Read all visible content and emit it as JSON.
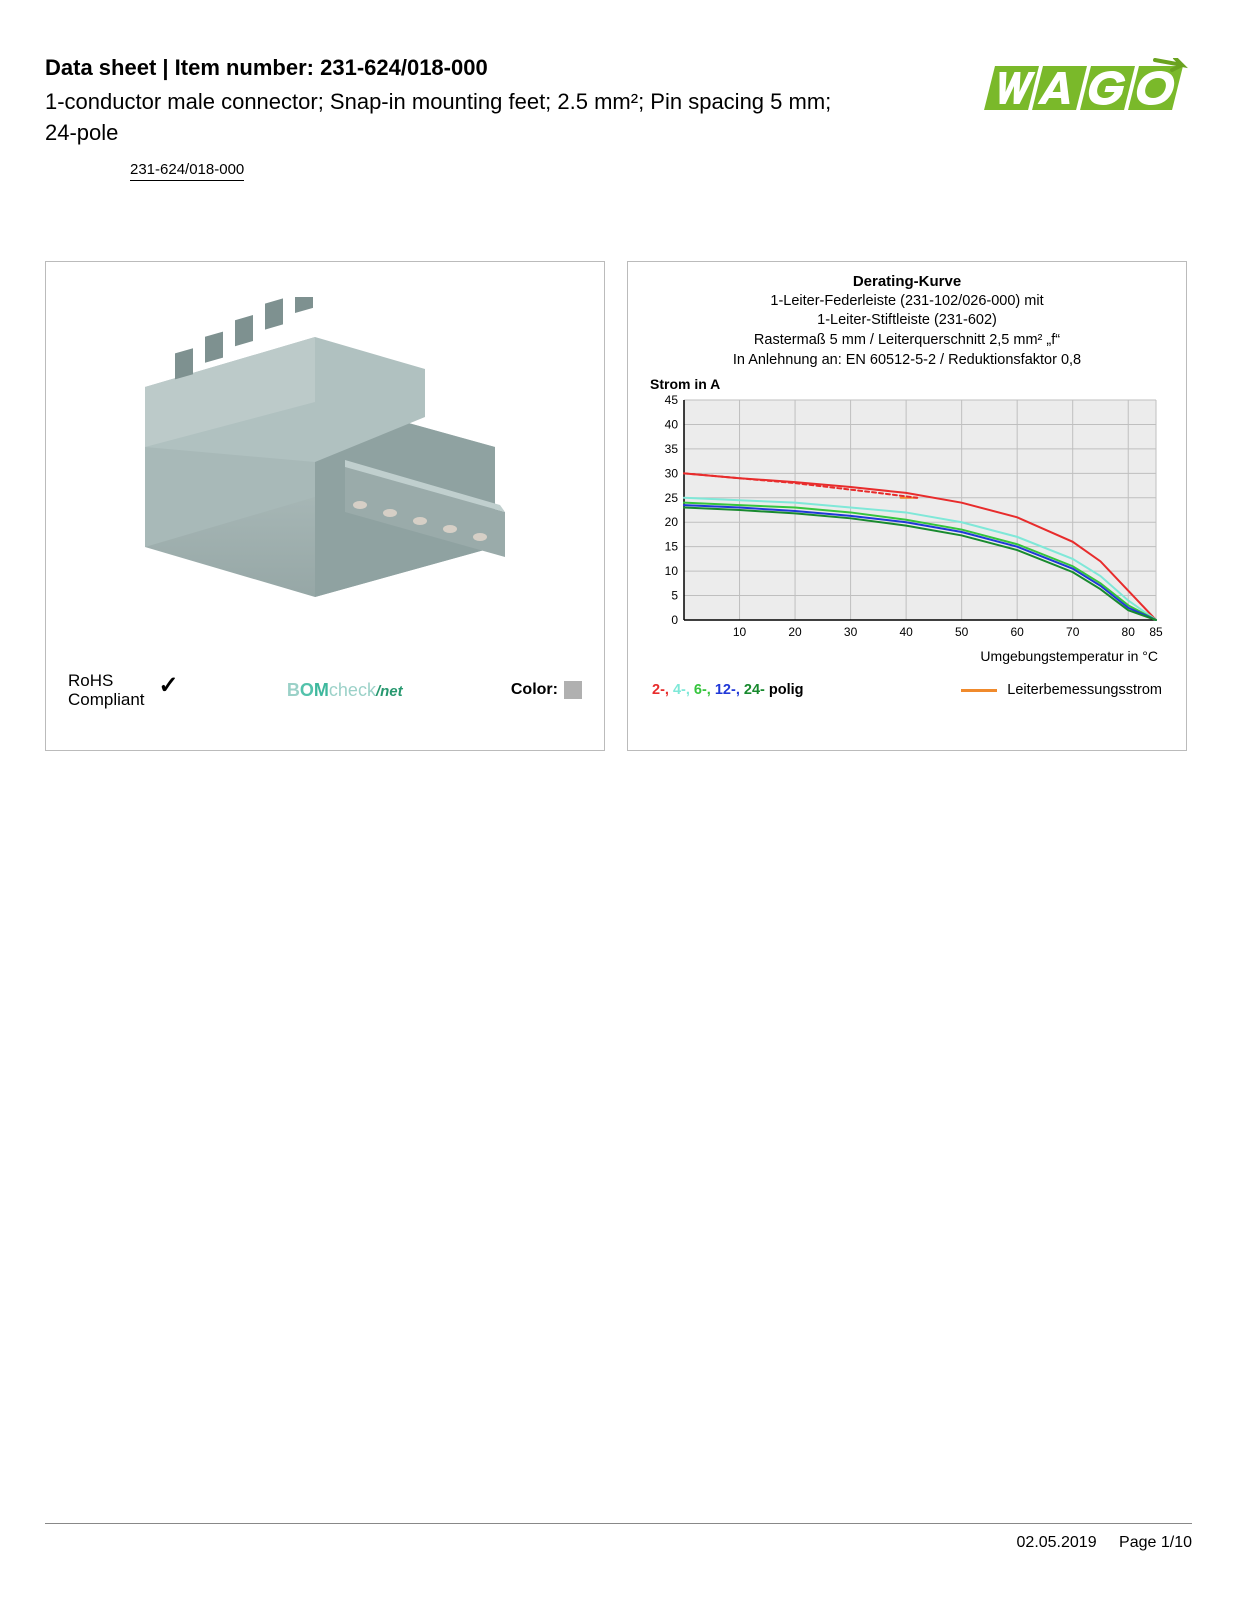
{
  "header": {
    "title": "Data sheet  |  Item number: 231-624/018-000",
    "description": "1-conductor male connector; Snap-in mounting feet; 2.5 mm²; Pin spacing 5 mm; 24-pole",
    "item_link": "231-624/018-000"
  },
  "logo": {
    "brand": "WAGO",
    "primary_color": "#7ab92a",
    "accent_color": "#6aa21f"
  },
  "product_panel": {
    "rohs_line1": "RoHS",
    "rohs_line2": "Compliant",
    "checkmark": "✓",
    "bomcheck_text": "BOMcheck",
    "bomcheck_suffix": "/net",
    "color_label": "Color:",
    "color_swatch": "#b0b0b0",
    "connector_color": "#a8b9b8",
    "connector_shadow": "#8fa2a1",
    "pin_color": "#d6cfc6"
  },
  "chart": {
    "title": "Derating-Kurve",
    "sub1": "1-Leiter-Federleiste (231-102/026-000) mit",
    "sub2": "1-Leiter-Stiftleiste (231-602)",
    "sub3": "Rastermaß 5 mm / Leiterquerschnitt 2,5 mm² „f“",
    "sub4": "In Anlehnung an: EN 60512-5-2 / Reduktionsfaktor 0,8",
    "y_axis_label": "Strom in A",
    "x_axis_label": "Umgebungstemperatur in °C",
    "y_ticks": [
      0,
      5,
      10,
      15,
      20,
      25,
      30,
      35,
      40,
      45
    ],
    "x_ticks": [
      10,
      20,
      30,
      40,
      50,
      60,
      70,
      80,
      85
    ],
    "xlim": [
      0,
      85
    ],
    "ylim": [
      0,
      45
    ],
    "plot_bg": "#ececec",
    "grid_color": "#bfbfbf",
    "axis_color": "#000000",
    "tick_fontsize": 12,
    "series": [
      {
        "name": "2-polig",
        "color": "#e82c2c",
        "dash": "none",
        "points": [
          [
            0,
            30
          ],
          [
            10,
            29
          ],
          [
            20,
            28.2
          ],
          [
            30,
            27.2
          ],
          [
            40,
            26
          ],
          [
            50,
            24
          ],
          [
            60,
            21
          ],
          [
            70,
            16
          ],
          [
            75,
            12
          ],
          [
            80,
            6
          ],
          [
            85,
            0
          ]
        ]
      },
      {
        "name": "4-polig",
        "color": "#7fe8d8",
        "dash": "none",
        "points": [
          [
            0,
            25
          ],
          [
            10,
            24.5
          ],
          [
            20,
            24
          ],
          [
            30,
            23
          ],
          [
            40,
            22
          ],
          [
            50,
            20
          ],
          [
            60,
            17
          ],
          [
            70,
            12.5
          ],
          [
            75,
            9
          ],
          [
            80,
            4
          ],
          [
            85,
            0
          ]
        ]
      },
      {
        "name": "6-polig",
        "color": "#35c43c",
        "dash": "none",
        "points": [
          [
            0,
            24
          ],
          [
            10,
            23.5
          ],
          [
            20,
            23
          ],
          [
            30,
            22
          ],
          [
            40,
            20.5
          ],
          [
            50,
            18.5
          ],
          [
            60,
            15.5
          ],
          [
            70,
            11
          ],
          [
            75,
            7.5
          ],
          [
            80,
            3
          ],
          [
            85,
            0
          ]
        ]
      },
      {
        "name": "12-polig",
        "color": "#2038d8",
        "dash": "none",
        "points": [
          [
            0,
            23.5
          ],
          [
            10,
            23
          ],
          [
            20,
            22.3
          ],
          [
            30,
            21.3
          ],
          [
            40,
            20
          ],
          [
            50,
            18
          ],
          [
            60,
            15
          ],
          [
            70,
            10.5
          ],
          [
            75,
            7
          ],
          [
            80,
            2.5
          ],
          [
            85,
            0
          ]
        ]
      },
      {
        "name": "24-polig",
        "color": "#188a2e",
        "dash": "none",
        "points": [
          [
            0,
            23
          ],
          [
            10,
            22.5
          ],
          [
            20,
            21.8
          ],
          [
            30,
            20.8
          ],
          [
            40,
            19.3
          ],
          [
            50,
            17.3
          ],
          [
            60,
            14.3
          ],
          [
            70,
            9.8
          ],
          [
            75,
            6.3
          ],
          [
            80,
            2
          ],
          [
            85,
            0
          ]
        ]
      },
      {
        "name": "Leiterbemessungsstrom",
        "color": "#f08a2c",
        "dash": "none",
        "points": [
          [
            39,
            25
          ],
          [
            42,
            25
          ]
        ]
      },
      {
        "name": "derating-dash",
        "color": "#e82c2c",
        "dash": "4 3",
        "points": [
          [
            0,
            30
          ],
          [
            20,
            28
          ],
          [
            35,
            26
          ],
          [
            42,
            25
          ]
        ]
      }
    ],
    "legend_polig": [
      {
        "text": "2-",
        "color": "#e82c2c"
      },
      {
        "text": "4-",
        "color": "#7fe8d8"
      },
      {
        "text": "6-",
        "color": "#35c43c"
      },
      {
        "text": "12-",
        "color": "#2038d8"
      },
      {
        "text": "24-",
        "color": "#188a2e"
      }
    ],
    "legend_polig_suffix": " polig",
    "legend_right_label": "Leiterbemessungsstrom"
  },
  "footer": {
    "date": "02.05.2019",
    "page": "Page 1/10"
  }
}
